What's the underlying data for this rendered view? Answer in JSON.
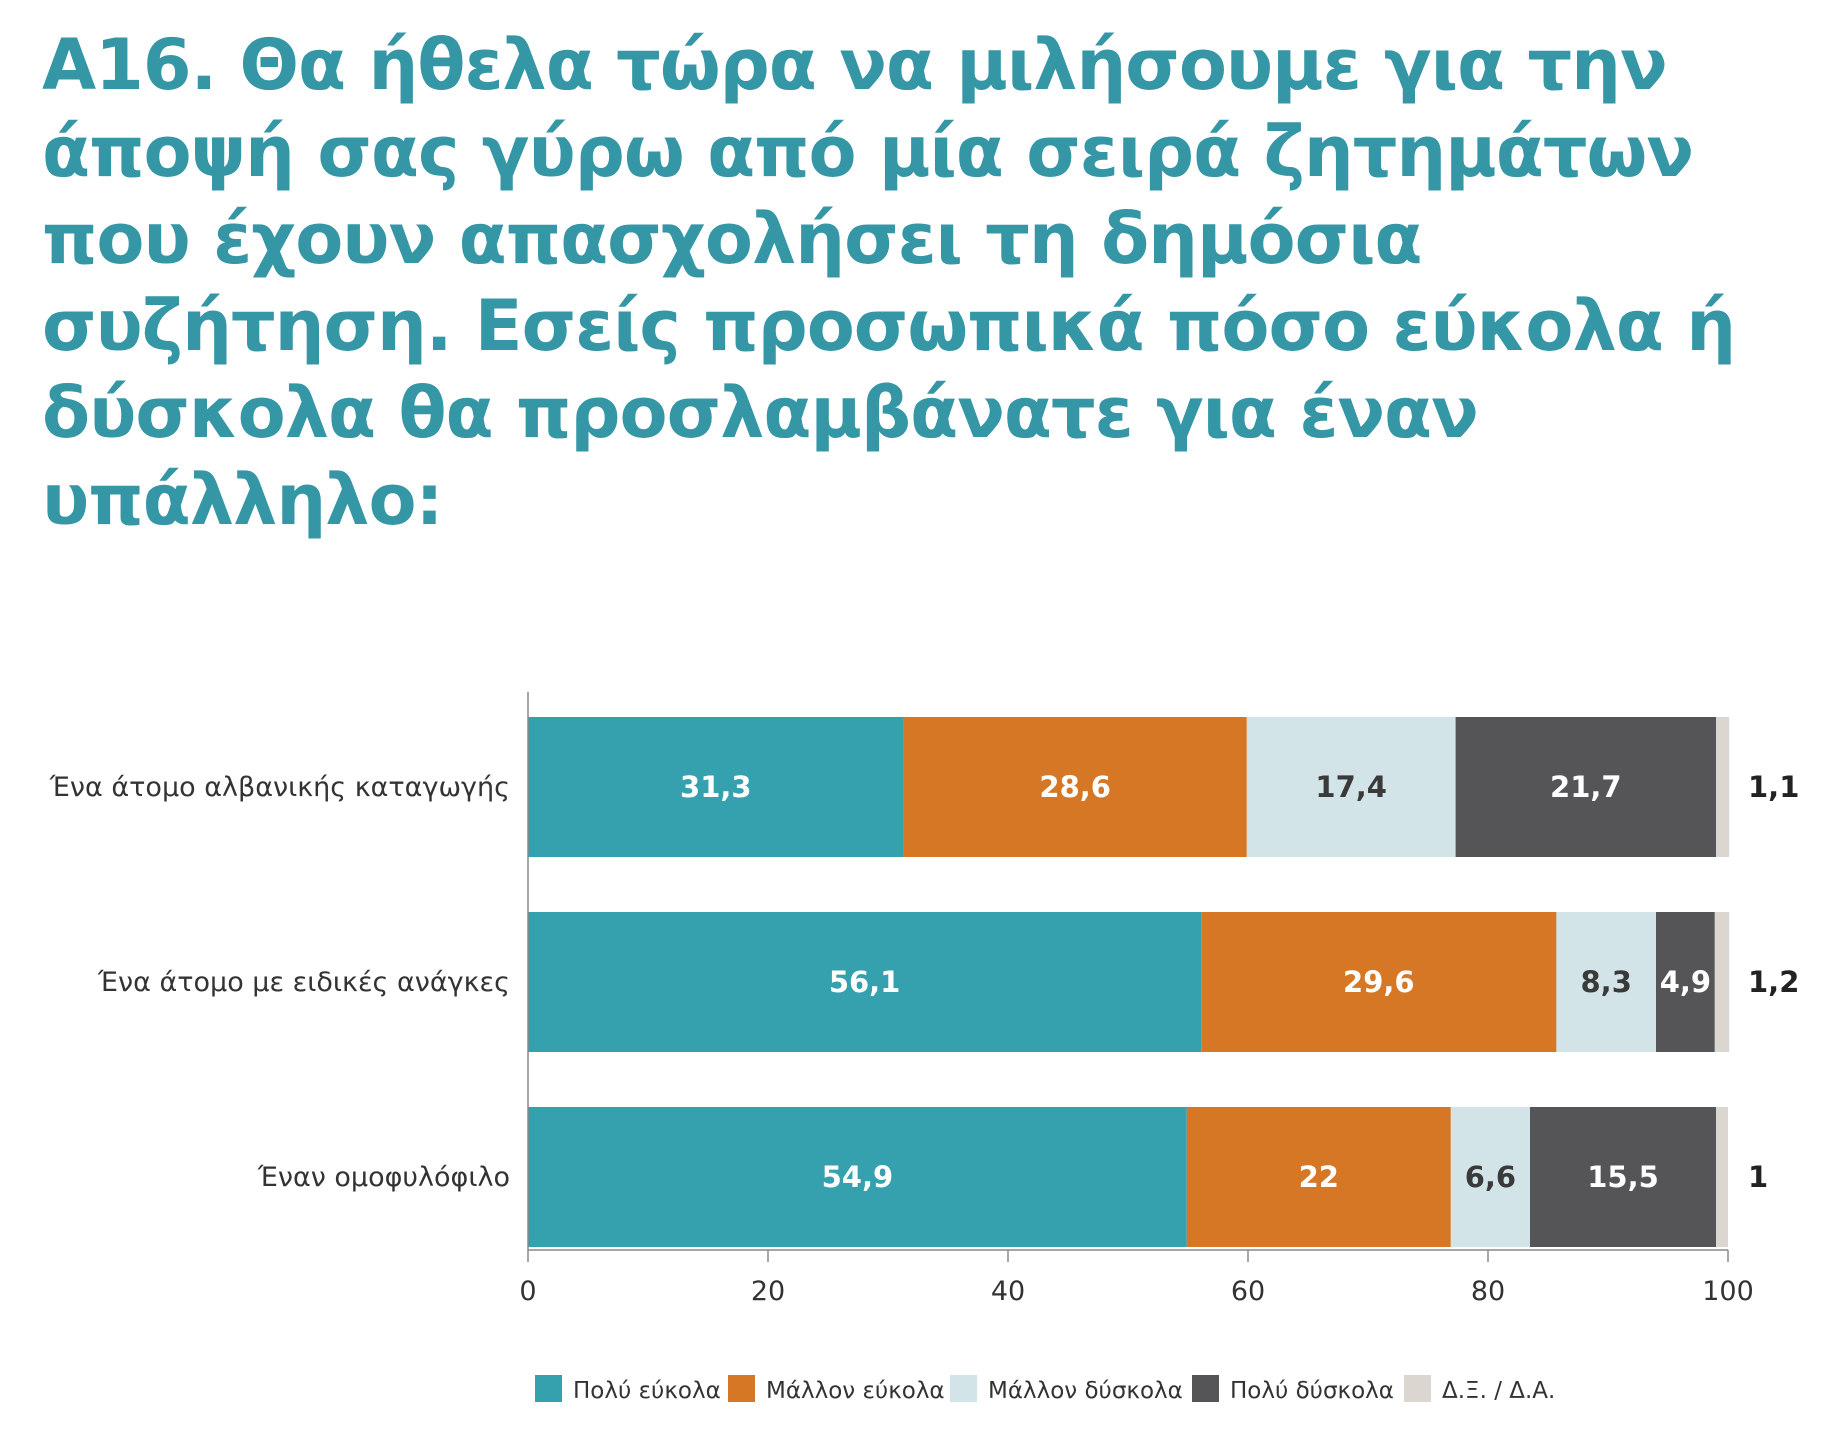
{
  "title": "Α16. Θα ήθελα τώρα να μιλήσουμε για την άποψή σας γύρω από μία σειρά ζητημάτων που έχουν απασχολήσει τη δημόσια συζήτηση. Εσείς προσωπικά πόσο εύκολα ή δύσκολα θα προσλαμβάνατε για έναν υπάλληλο:",
  "chart_data": {
    "type": "bar",
    "orientation": "horizontal",
    "stacked": true,
    "categories": [
      "Ένα άτομο αλβανικής καταγωγής",
      "Ένα άτομο με ειδικές ανάγκες",
      "Έναν ομοφυλόφιλο"
    ],
    "series": [
      {
        "name": "Πολύ εύκολα",
        "color": "#35a0ae",
        "label_color": "#ffffff",
        "values": [
          31.3,
          56.1,
          54.9
        ],
        "labels": [
          "31,3",
          "56,1",
          "54,9"
        ]
      },
      {
        "name": "Μάλλον εύκολα",
        "color": "#d67725",
        "label_color": "#ffffff",
        "values": [
          28.6,
          29.6,
          22
        ],
        "labels": [
          "28,6",
          "29,6",
          "22"
        ]
      },
      {
        "name": "Μάλλον δύσκολα",
        "color": "#d2e4e8",
        "label_color": "#3a3a3a",
        "values": [
          17.4,
          8.3,
          6.6
        ],
        "labels": [
          "17,4",
          "8,3",
          "6,6"
        ]
      },
      {
        "name": "Πολύ δύσκολα",
        "color": "#555558",
        "label_color": "#ffffff",
        "values": [
          21.7,
          4.9,
          15.5
        ],
        "labels": [
          "21,7",
          "4,9",
          "15,5"
        ]
      },
      {
        "name": "Δ.Ξ. / Δ.Α.",
        "color": "#dcd6d0",
        "label_color": "#222222",
        "values": [
          1.1,
          1.2,
          1
        ],
        "labels": [
          "1,1",
          "1,2",
          "1"
        ],
        "label_outside": true
      }
    ],
    "xlim": [
      0,
      100
    ],
    "xticks": [
      0,
      20,
      40,
      60,
      80,
      100
    ],
    "xlabel": "",
    "ylabel": "",
    "legend_position": "bottom",
    "grid": false
  }
}
